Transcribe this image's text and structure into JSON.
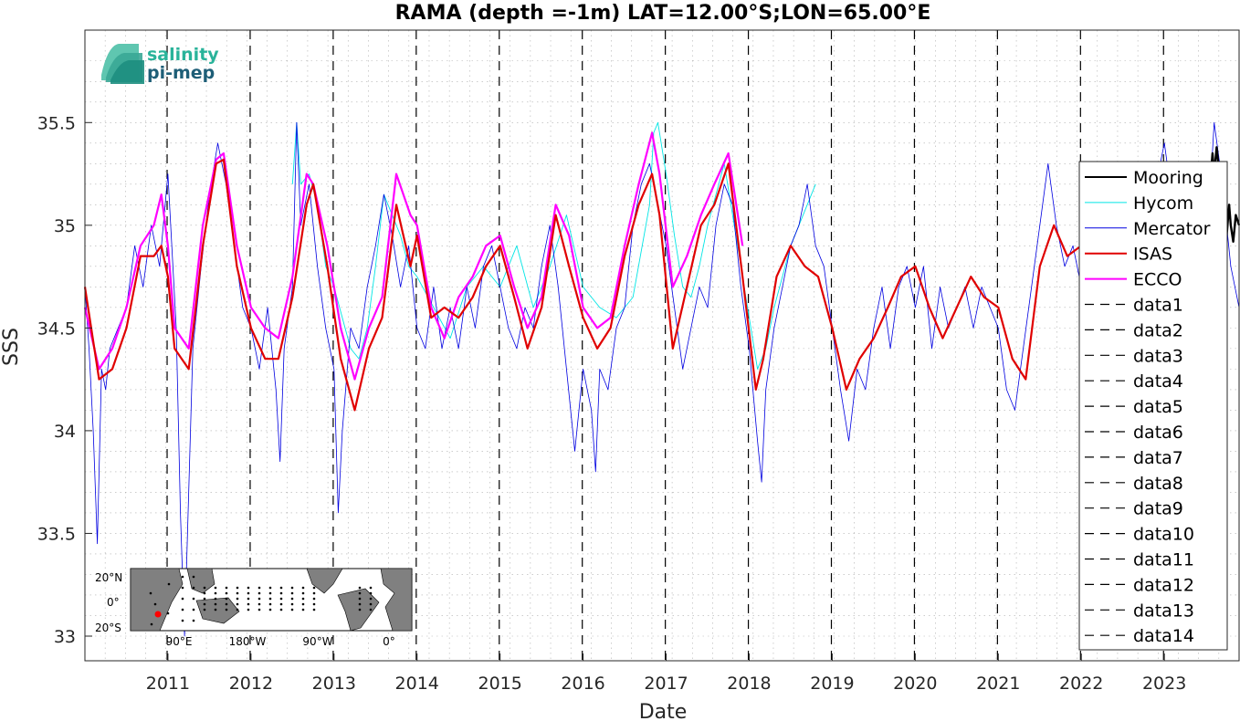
{
  "chart_data": {
    "type": "line",
    "title": "RAMA (depth =-1m) LAT=12.00°S;LON=65.00°E",
    "xlabel": "Date",
    "ylabel": "SSS",
    "xlim": [
      2010.0,
      2023.9
    ],
    "ylim": [
      32.88,
      35.95
    ],
    "x_ticks": [
      2011,
      2012,
      2013,
      2014,
      2015,
      2016,
      2017,
      2018,
      2019,
      2020,
      2021,
      2022,
      2023
    ],
    "x_tick_labels": [
      "2011",
      "2012",
      "2013",
      "2014",
      "2015",
      "2016",
      "2017",
      "2018",
      "2019",
      "2020",
      "2021",
      "2022",
      "2023"
    ],
    "y_ticks": [
      33,
      33.5,
      34,
      34.5,
      35,
      35.5
    ],
    "y_tick_labels": [
      "33",
      "33.5",
      "34",
      "34.5",
      "35",
      "35.5"
    ],
    "grid": true,
    "legend_position": "right",
    "logo": {
      "line1": "salinity",
      "line2": "pi-mep"
    },
    "inset_map": {
      "lat_labels": [
        "20°N",
        "0°",
        "20°S"
      ],
      "lon_labels": [
        "90°E",
        "180°W",
        "90°W",
        "0°"
      ]
    },
    "series": [
      {
        "name": "Mooring",
        "color": "#000000",
        "x": [
          2023.55,
          2023.58,
          2023.6,
          2023.63,
          2023.65,
          2023.68,
          2023.7,
          2023.72,
          2023.75,
          2023.78,
          2023.8,
          2023.83,
          2023.86,
          2023.9
        ],
        "y": [
          35.2,
          35.35,
          35.25,
          35.38,
          35.3,
          35.15,
          35.2,
          35.0,
          34.95,
          35.1,
          35.0,
          34.92,
          35.05,
          35.0
        ]
      },
      {
        "name": "Hycom",
        "color": "#00e5e5",
        "x": [
          2012.5,
          2012.55,
          2012.6,
          2012.7,
          2012.8,
          2012.9,
          2013.0,
          2013.1,
          2013.2,
          2013.3,
          2013.4,
          2013.5,
          2013.6,
          2013.7,
          2013.8,
          2013.9,
          2014.0,
          2014.2,
          2014.4,
          2014.6,
          2014.8,
          2015.0,
          2015.2,
          2015.4,
          2015.6,
          2015.8,
          2016.0,
          2016.2,
          2016.4,
          2016.6,
          2016.8,
          2016.85,
          2016.9,
          2017.0,
          2017.1,
          2017.2,
          2017.3,
          2017.4,
          2017.5,
          2017.6,
          2017.7,
          2017.8,
          2017.9,
          2018.0,
          2018.1,
          2018.2,
          2018.3,
          2018.4,
          2018.5,
          2018.6,
          2018.7,
          2018.8
        ],
        "y": [
          35.2,
          35.5,
          35.2,
          35.25,
          35.1,
          34.8,
          34.7,
          34.55,
          34.4,
          34.35,
          34.5,
          34.8,
          35.15,
          35.05,
          34.95,
          34.8,
          34.75,
          34.6,
          34.45,
          34.7,
          34.8,
          34.7,
          34.9,
          34.6,
          34.8,
          35.05,
          34.7,
          34.6,
          34.55,
          34.65,
          35.1,
          35.45,
          35.5,
          35.25,
          34.95,
          34.7,
          34.65,
          34.8,
          35.0,
          35.15,
          35.3,
          35.05,
          34.8,
          34.55,
          34.3,
          34.4,
          34.6,
          34.75,
          34.9,
          35.0,
          35.1,
          35.2
        ]
      },
      {
        "name": "Mercator",
        "color": "#0000e0",
        "x": [
          2010.0,
          2010.05,
          2010.1,
          2010.15,
          2010.2,
          2010.25,
          2010.3,
          2010.4,
          2010.5,
          2010.6,
          2010.7,
          2010.8,
          2010.9,
          2011.0,
          2011.1,
          2011.15,
          2011.2,
          2011.3,
          2011.4,
          2011.5,
          2011.6,
          2011.7,
          2011.8,
          2011.9,
          2012.0,
          2012.1,
          2012.2,
          2012.3,
          2012.35,
          2012.4,
          2012.5,
          2012.55,
          2012.6,
          2012.7,
          2012.8,
          2012.9,
          2013.0,
          2013.05,
          2013.1,
          2013.2,
          2013.3,
          2013.4,
          2013.5,
          2013.6,
          2013.7,
          2013.8,
          2013.9,
          2014.0,
          2014.1,
          2014.2,
          2014.3,
          2014.4,
          2014.5,
          2014.6,
          2014.7,
          2014.8,
          2014.9,
          2015.0,
          2015.1,
          2015.2,
          2015.3,
          2015.4,
          2015.5,
          2015.6,
          2015.7,
          2015.8,
          2015.9,
          2016.0,
          2016.1,
          2016.15,
          2016.2,
          2016.3,
          2016.4,
          2016.5,
          2016.6,
          2016.7,
          2016.8,
          2016.9,
          2017.0,
          2017.1,
          2017.2,
          2017.3,
          2017.4,
          2017.5,
          2017.6,
          2017.7,
          2017.8,
          2017.9,
          2018.0,
          2018.1,
          2018.15,
          2018.2,
          2018.3,
          2018.4,
          2018.5,
          2018.6,
          2018.7,
          2018.8,
          2018.9,
          2019.0,
          2019.1,
          2019.2,
          2019.3,
          2019.4,
          2019.5,
          2019.6,
          2019.7,
          2019.8,
          2019.9,
          2020.0,
          2020.1,
          2020.2,
          2020.3,
          2020.4,
          2020.5,
          2020.6,
          2020.7,
          2020.8,
          2020.9,
          2021.0,
          2021.1,
          2021.2,
          2021.3,
          2021.4,
          2021.5,
          2021.6,
          2021.7,
          2021.8,
          2021.9,
          2022.0,
          2022.1,
          2022.2,
          2022.3,
          2022.4,
          2022.5,
          2022.6,
          2022.7,
          2022.8,
          2022.9,
          2023.0,
          2023.1,
          2023.2,
          2023.3,
          2023.4,
          2023.5,
          2023.6,
          2023.7,
          2023.8,
          2023.9
        ],
        "y": [
          34.7,
          34.4,
          34.0,
          33.45,
          34.3,
          34.2,
          34.4,
          34.5,
          34.6,
          34.9,
          34.7,
          35.0,
          34.8,
          35.25,
          34.5,
          33.6,
          33.0,
          34.4,
          34.8,
          35.15,
          35.4,
          35.2,
          34.9,
          34.6,
          34.5,
          34.3,
          34.6,
          34.2,
          33.85,
          34.4,
          34.7,
          35.5,
          35.0,
          35.2,
          34.8,
          34.5,
          34.3,
          33.6,
          34.0,
          34.5,
          34.4,
          34.7,
          34.9,
          35.15,
          34.95,
          34.7,
          34.9,
          34.5,
          34.4,
          34.7,
          34.4,
          34.6,
          34.4,
          34.7,
          34.5,
          34.8,
          34.9,
          34.7,
          34.5,
          34.4,
          34.6,
          34.5,
          34.8,
          35.0,
          34.7,
          34.3,
          33.9,
          34.3,
          34.1,
          33.8,
          34.3,
          34.2,
          34.5,
          34.6,
          35.0,
          35.2,
          35.3,
          35.1,
          34.9,
          34.6,
          34.3,
          34.5,
          34.7,
          34.6,
          35.0,
          35.2,
          35.1,
          34.7,
          34.4,
          33.95,
          33.75,
          34.2,
          34.5,
          34.7,
          34.9,
          35.0,
          35.2,
          34.9,
          34.8,
          34.5,
          34.2,
          33.95,
          34.3,
          34.2,
          34.5,
          34.7,
          34.4,
          34.7,
          34.8,
          34.6,
          34.8,
          34.4,
          34.7,
          34.5,
          34.6,
          34.7,
          34.5,
          34.7,
          34.6,
          34.5,
          34.2,
          34.1,
          34.4,
          34.7,
          35.0,
          35.3,
          35.0,
          34.8,
          34.9,
          34.7,
          34.8,
          34.9,
          35.0,
          34.8,
          34.9,
          35.1,
          34.9,
          35.0,
          35.2,
          35.4,
          35.1,
          34.9,
          35.3,
          35.0,
          34.8,
          35.5,
          35.2,
          34.8,
          34.6
        ]
      },
      {
        "name": "ISAS",
        "color": "#e00000",
        "x": [
          2010.0,
          2010.17,
          2010.33,
          2010.5,
          2010.67,
          2010.83,
          2010.92,
          2011.0,
          2011.08,
          2011.25,
          2011.42,
          2011.58,
          2011.67,
          2011.83,
          2012.0,
          2012.17,
          2012.33,
          2012.5,
          2012.67,
          2012.75,
          2012.92,
          2013.08,
          2013.25,
          2013.42,
          2013.58,
          2013.75,
          2013.92,
          2014.0,
          2014.17,
          2014.33,
          2014.5,
          2014.67,
          2014.83,
          2015.0,
          2015.17,
          2015.33,
          2015.5,
          2015.67,
          2015.83,
          2016.0,
          2016.17,
          2016.33,
          2016.5,
          2016.67,
          2016.83,
          2016.92,
          2017.08,
          2017.25,
          2017.42,
          2017.58,
          2017.75,
          2017.92,
          2018.08,
          2018.17,
          2018.33,
          2018.5,
          2018.67,
          2018.83,
          2019.0,
          2019.17,
          2019.33,
          2019.5,
          2019.67,
          2019.83,
          2020.0,
          2020.17,
          2020.33,
          2020.5,
          2020.67,
          2020.83,
          2021.0,
          2021.17,
          2021.33,
          2021.5,
          2021.67,
          2021.83,
          2022.0
        ],
        "y": [
          34.7,
          34.25,
          34.3,
          34.5,
          34.85,
          34.85,
          34.9,
          34.75,
          34.4,
          34.3,
          34.9,
          35.3,
          35.32,
          34.8,
          34.5,
          34.35,
          34.35,
          34.65,
          35.1,
          35.2,
          34.8,
          34.35,
          34.1,
          34.4,
          34.55,
          35.1,
          34.8,
          34.95,
          34.55,
          34.6,
          34.55,
          34.65,
          34.8,
          34.9,
          34.65,
          34.4,
          34.6,
          35.05,
          34.8,
          34.55,
          34.4,
          34.5,
          34.85,
          35.1,
          35.25,
          35.05,
          34.4,
          34.7,
          35.0,
          35.1,
          35.3,
          34.75,
          34.2,
          34.35,
          34.75,
          34.9,
          34.8,
          34.75,
          34.5,
          34.2,
          34.35,
          34.45,
          34.6,
          34.75,
          34.8,
          34.6,
          34.45,
          34.6,
          34.75,
          34.65,
          34.6,
          34.35,
          34.25,
          34.8,
          35.0,
          34.85,
          34.9
        ]
      },
      {
        "name": "ECCO",
        "color": "#ff00ff",
        "x": [
          2010.0,
          2010.17,
          2010.33,
          2010.5,
          2010.67,
          2010.83,
          2010.92,
          2011.0,
          2011.08,
          2011.25,
          2011.42,
          2011.58,
          2011.67,
          2011.83,
          2012.0,
          2012.17,
          2012.33,
          2012.5,
          2012.67,
          2012.75,
          2012.92,
          2013.08,
          2013.25,
          2013.42,
          2013.58,
          2013.75,
          2013.92,
          2014.0,
          2014.17,
          2014.33,
          2014.5,
          2014.67,
          2014.83,
          2015.0,
          2015.17,
          2015.33,
          2015.5,
          2015.67,
          2015.83,
          2016.0,
          2016.17,
          2016.33,
          2016.5,
          2016.67,
          2016.83,
          2016.92,
          2017.08,
          2017.25,
          2017.42,
          2017.58,
          2017.75,
          2017.92
        ],
        "y": [
          34.6,
          34.3,
          34.4,
          34.6,
          34.9,
          35.0,
          35.15,
          34.9,
          34.5,
          34.4,
          35.0,
          35.32,
          35.35,
          34.9,
          34.6,
          34.5,
          34.45,
          34.75,
          35.25,
          35.2,
          34.9,
          34.5,
          34.25,
          34.5,
          34.65,
          35.25,
          35.05,
          35.0,
          34.6,
          34.45,
          34.65,
          34.75,
          34.9,
          34.95,
          34.7,
          34.5,
          34.65,
          35.1,
          34.95,
          34.6,
          34.5,
          34.55,
          34.9,
          35.2,
          35.45,
          35.25,
          34.7,
          34.85,
          35.05,
          35.2,
          35.35,
          34.9
        ]
      }
    ],
    "legend": [
      "Mooring",
      "Hycom",
      "Mercator",
      "ISAS",
      "ECCO",
      "data1",
      "data2",
      "data3",
      "data4",
      "data5",
      "data6",
      "data7",
      "data8",
      "data9",
      "data10",
      "data11",
      "data12",
      "data13",
      "data14"
    ],
    "vertical_lines": {
      "style": "dashed",
      "color": "#000000",
      "x": [
        2010.99,
        2011.99,
        2012.99,
        2013.99,
        2014.99,
        2015.99,
        2016.99,
        2017.99,
        2018.99,
        2019.99,
        2020.99,
        2021.99,
        2022.99
      ]
    }
  }
}
